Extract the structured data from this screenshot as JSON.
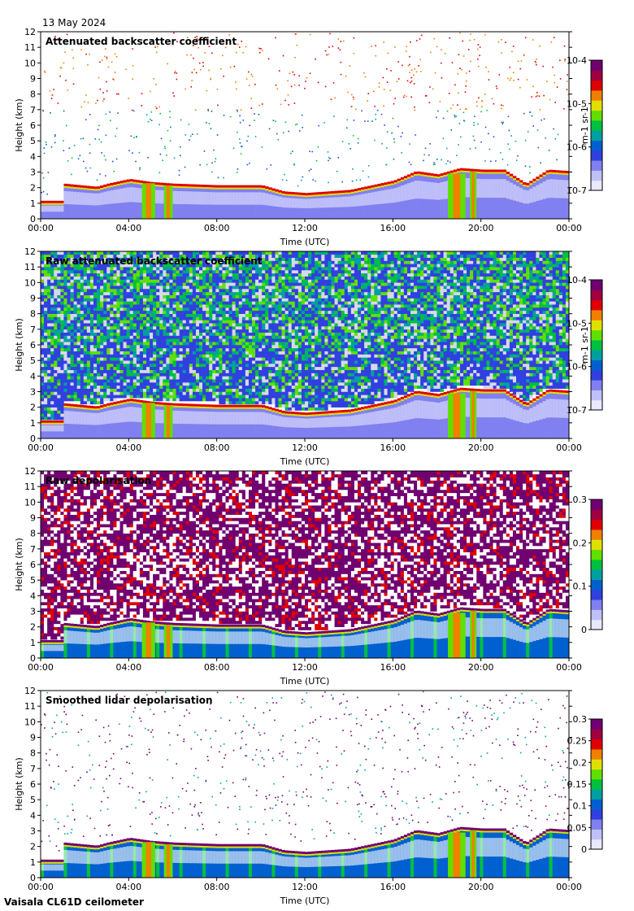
{
  "header": {
    "date": "13 May 2024"
  },
  "footer": {
    "instrument": "Vaisala CL61D ceilometer"
  },
  "chart_data": [
    {
      "type": "heatmap",
      "title": "Attenuated backscatter coefficient",
      "xlabel": "Time (UTC)",
      "ylabel": "Height (km)",
      "x_ticks": [
        "00:00",
        "04:00",
        "08:00",
        "12:00",
        "16:00",
        "20:00",
        "00:00"
      ],
      "y_ticks": [
        "0",
        "1",
        "2",
        "3",
        "4",
        "5",
        "6",
        "7",
        "8",
        "9",
        "10",
        "11",
        "12"
      ],
      "xlim_hours": [
        0,
        24
      ],
      "ylim_km": [
        0,
        12
      ],
      "colorbar": {
        "scale": "log",
        "range": [
          1e-07,
          0.0001
        ],
        "ticks": [
          "10-7",
          "10-6",
          "10-5",
          "10-4"
        ],
        "label": "m-1 sr-1"
      },
      "cloud_base_km": {
        "hours": [
          0,
          0.9,
          1,
          2.5,
          3,
          4,
          5,
          6,
          8,
          10,
          11,
          12,
          14,
          16,
          17,
          18,
          19,
          20,
          21,
          22,
          23,
          24
        ],
        "height": [
          1.0,
          1.0,
          2.1,
          1.9,
          2.1,
          2.4,
          2.2,
          2.1,
          2.0,
          2.0,
          1.6,
          1.5,
          1.7,
          2.3,
          2.9,
          2.7,
          3.1,
          3.0,
          3.0,
          2.1,
          3.0,
          2.9
        ]
      },
      "noise": "sparse"
    },
    {
      "type": "heatmap",
      "title": "Raw attenuated backscatter coefficient",
      "xlabel": "Time (UTC)",
      "ylabel": "Height (km)",
      "x_ticks": [
        "00:00",
        "04:00",
        "08:00",
        "12:00",
        "16:00",
        "20:00",
        "00:00"
      ],
      "y_ticks": [
        "0",
        "1",
        "2",
        "3",
        "4",
        "5",
        "6",
        "7",
        "8",
        "9",
        "10",
        "11",
        "12"
      ],
      "xlim_hours": [
        0,
        24
      ],
      "ylim_km": [
        0,
        12
      ],
      "colorbar": {
        "scale": "log",
        "range": [
          1e-07,
          0.0001
        ],
        "ticks": [
          "10-7",
          "10-6",
          "10-5",
          "10-4"
        ],
        "label": "m-1 sr-1"
      },
      "noise": "dense-backscatter"
    },
    {
      "type": "heatmap",
      "title": "Raw depolarisation",
      "xlabel": "Time (UTC)",
      "ylabel": "Height (km)",
      "x_ticks": [
        "00:00",
        "04:00",
        "08:00",
        "12:00",
        "16:00",
        "20:00",
        "00:00"
      ],
      "y_ticks": [
        "0",
        "1",
        "2",
        "3",
        "4",
        "5",
        "6",
        "7",
        "8",
        "9",
        "10",
        "11",
        "12"
      ],
      "xlim_hours": [
        0,
        24
      ],
      "ylim_km": [
        0,
        12
      ],
      "colorbar": {
        "scale": "linear",
        "range": [
          0,
          0.3
        ],
        "ticks": [
          "0",
          "0.1",
          "0.2",
          "0.3"
        ],
        "label": ""
      },
      "noise": "dense-depol"
    },
    {
      "type": "heatmap",
      "title": "Smoothed lidar depolarisation",
      "xlabel": "Time (UTC)",
      "ylabel": "Height (km)",
      "x_ticks": [
        "00:00",
        "04:00",
        "08:00",
        "12:00",
        "16:00",
        "20:00",
        "00:00"
      ],
      "y_ticks": [
        "0",
        "1",
        "2",
        "3",
        "4",
        "5",
        "6",
        "7",
        "8",
        "9",
        "10",
        "11",
        "12"
      ],
      "xlim_hours": [
        0,
        24
      ],
      "ylim_km": [
        0,
        12
      ],
      "colorbar": {
        "scale": "linear",
        "range": [
          0,
          0.3
        ],
        "ticks": [
          "0",
          "0.05",
          "0.1",
          "0.15",
          "0.2",
          "0.25",
          "0.3"
        ],
        "label": ""
      },
      "noise": "sparse-depol"
    }
  ],
  "colors": {
    "colormap": [
      "#e8e8ff",
      "#c0c0f8",
      "#8080f0",
      "#3040e0",
      "#0060d0",
      "#00a0a0",
      "#00c040",
      "#60e000",
      "#e0e000",
      "#f08000",
      "#e00000",
      "#a00040",
      "#700070"
    ],
    "lowest_layer": "#d8d8f0",
    "missing": "#e0e0e0"
  }
}
